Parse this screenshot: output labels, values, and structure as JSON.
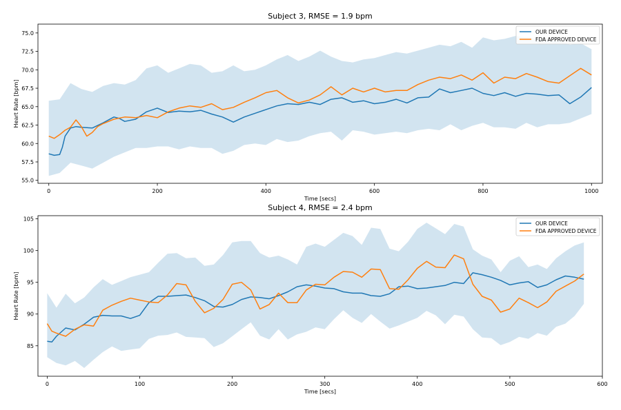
{
  "colors": {
    "device": "#1f77b4",
    "fda": "#ff7f0e",
    "band": "#1f77b4"
  },
  "chart_data": [
    {
      "type": "line",
      "title": "Subject 3, RMSE = 1.9 bpm",
      "xlabel": "Time [secs]",
      "ylabel": "Heart Rate [bpm]",
      "xlim": [
        -20,
        1020
      ],
      "ylim": [
        54.6,
        76.2
      ],
      "xticks": [
        0,
        200,
        400,
        600,
        800,
        1000
      ],
      "yticks": [
        55.0,
        57.5,
        60.0,
        62.5,
        65.0,
        67.5,
        70.0,
        72.5,
        75.0
      ],
      "ytick_labels": [
        "55.0",
        "57.5",
        "60.0",
        "62.5",
        "65.0",
        "67.5",
        "70.0",
        "72.5",
        "75.0"
      ],
      "grid": false,
      "legend_position": "top-right",
      "series": [
        {
          "name": "OUR DEVICE",
          "x": [
            0,
            10,
            20,
            25,
            30,
            40,
            50,
            60,
            80,
            100,
            120,
            130,
            140,
            160,
            180,
            200,
            220,
            240,
            260,
            280,
            300,
            320,
            340,
            360,
            380,
            400,
            420,
            440,
            460,
            480,
            500,
            520,
            540,
            560,
            580,
            600,
            620,
            640,
            660,
            680,
            700,
            720,
            740,
            760,
            780,
            800,
            820,
            840,
            860,
            880,
            900,
            920,
            940,
            960,
            980,
            1000
          ],
          "values": [
            58.6,
            58.4,
            58.5,
            59.5,
            61.0,
            62.1,
            62.3,
            62.2,
            62.1,
            62.8,
            63.6,
            63.4,
            63.0,
            63.3,
            64.3,
            64.8,
            64.2,
            64.4,
            64.3,
            64.5,
            64.0,
            63.6,
            62.9,
            63.6,
            64.1,
            64.6,
            65.1,
            65.4,
            65.3,
            65.6,
            65.3,
            66.0,
            66.2,
            65.6,
            65.8,
            65.4,
            65.6,
            66.0,
            65.5,
            66.2,
            66.3,
            67.4,
            66.9,
            67.2,
            67.5,
            66.8,
            66.5,
            66.9,
            66.4,
            66.8,
            66.7,
            66.5,
            66.6,
            65.4,
            66.3,
            67.6
          ]
        },
        {
          "name": "FDA APPROVED DEVICE",
          "x": [
            0,
            10,
            20,
            30,
            40,
            50,
            60,
            70,
            80,
            90,
            100,
            120,
            140,
            160,
            180,
            200,
            220,
            240,
            260,
            280,
            300,
            320,
            340,
            360,
            380,
            400,
            420,
            440,
            460,
            480,
            500,
            520,
            540,
            560,
            580,
            600,
            620,
            640,
            660,
            680,
            700,
            720,
            740,
            760,
            780,
            800,
            820,
            840,
            860,
            880,
            900,
            920,
            940,
            960,
            980,
            1000
          ],
          "values": [
            61.0,
            60.7,
            61.2,
            61.8,
            62.2,
            63.2,
            62.3,
            61.0,
            61.5,
            62.3,
            62.7,
            63.3,
            63.6,
            63.5,
            63.8,
            63.5,
            64.3,
            64.8,
            65.1,
            64.9,
            65.4,
            64.6,
            64.9,
            65.6,
            66.2,
            66.9,
            67.2,
            66.2,
            65.5,
            65.9,
            66.6,
            67.7,
            66.6,
            67.5,
            67.0,
            67.5,
            67.0,
            67.2,
            67.2,
            68.0,
            68.6,
            69.0,
            68.8,
            69.3,
            68.6,
            69.6,
            68.2,
            69.0,
            68.8,
            69.5,
            69.0,
            68.4,
            68.2,
            69.2,
            70.2,
            69.3
          ]
        },
        {
          "name": "",
          "kind": "band",
          "x": [
            0,
            20,
            40,
            60,
            80,
            100,
            120,
            140,
            160,
            180,
            200,
            220,
            240,
            260,
            280,
            300,
            320,
            340,
            360,
            380,
            400,
            420,
            440,
            460,
            480,
            500,
            520,
            540,
            560,
            580,
            600,
            620,
            640,
            660,
            680,
            700,
            720,
            740,
            760,
            780,
            800,
            820,
            840,
            860,
            880,
            900,
            920,
            940,
            960,
            980,
            1000
          ],
          "upper": [
            65.8,
            66.0,
            68.2,
            67.4,
            67.0,
            67.8,
            68.2,
            68.0,
            68.6,
            70.2,
            70.6,
            69.6,
            70.2,
            70.8,
            70.6,
            69.6,
            69.8,
            70.6,
            69.8,
            70.0,
            70.6,
            71.4,
            72.0,
            71.2,
            71.8,
            72.6,
            71.8,
            71.2,
            71.0,
            71.4,
            71.6,
            72.0,
            72.4,
            72.2,
            72.6,
            73.0,
            73.4,
            73.2,
            73.8,
            73.0,
            74.4,
            74.0,
            74.2,
            74.6,
            74.4,
            74.2,
            74.0,
            74.0,
            73.4,
            73.6,
            72.8
          ],
          "lower": [
            55.6,
            56.0,
            57.4,
            57.0,
            56.6,
            57.4,
            58.2,
            58.8,
            59.4,
            59.4,
            59.6,
            59.6,
            59.2,
            59.6,
            59.4,
            59.4,
            58.6,
            59.0,
            59.8,
            60.0,
            59.8,
            60.6,
            60.2,
            60.4,
            61.0,
            61.4,
            61.6,
            60.4,
            61.8,
            61.6,
            61.2,
            61.4,
            61.6,
            61.4,
            61.8,
            62.0,
            61.8,
            62.6,
            61.8,
            62.4,
            62.8,
            62.2,
            62.2,
            62.0,
            62.8,
            62.2,
            62.6,
            62.6,
            62.8,
            63.4,
            64.0
          ]
        }
      ]
    },
    {
      "type": "line",
      "title": "Subject 4, RMSE = 2.4 bpm",
      "xlabel": "Time [secs]",
      "ylabel": "Heart Rate [bpm]",
      "xlim": [
        -10,
        600
      ],
      "ylim": [
        80.2,
        105.5
      ],
      "xticks": [
        0,
        100,
        200,
        300,
        400,
        500,
        600
      ],
      "yticks": [
        85,
        90,
        95,
        100,
        105
      ],
      "ytick_labels": [
        "85",
        "90",
        "95",
        "100",
        "105"
      ],
      "grid": false,
      "legend_position": "top-right",
      "series": [
        {
          "name": "OUR DEVICE",
          "x": [
            0,
            5,
            10,
            20,
            30,
            40,
            50,
            60,
            70,
            80,
            90,
            100,
            110,
            120,
            130,
            140,
            150,
            160,
            170,
            180,
            190,
            200,
            210,
            220,
            230,
            240,
            250,
            260,
            270,
            280,
            290,
            300,
            310,
            320,
            330,
            340,
            350,
            360,
            370,
            380,
            390,
            400,
            410,
            420,
            430,
            440,
            450,
            460,
            470,
            480,
            490,
            500,
            510,
            520,
            530,
            540,
            550,
            560,
            570,
            580
          ],
          "values": [
            85.7,
            85.6,
            86.5,
            87.8,
            87.5,
            88.4,
            89.5,
            89.8,
            89.7,
            89.7,
            89.3,
            89.8,
            91.8,
            92.8,
            92.8,
            92.9,
            93.0,
            92.6,
            92.1,
            91.2,
            91.1,
            91.5,
            92.3,
            92.7,
            92.6,
            92.4,
            92.9,
            93.5,
            94.3,
            94.6,
            94.4,
            94.1,
            94.0,
            93.5,
            93.3,
            93.3,
            92.9,
            92.8,
            93.2,
            94.3,
            94.4,
            94.0,
            94.1,
            94.3,
            94.5,
            95.0,
            94.8,
            96.5,
            96.2,
            95.8,
            95.3,
            94.6,
            94.9,
            95.1,
            94.2,
            94.6,
            95.4,
            96.0,
            95.8,
            95.5
          ]
        },
        {
          "name": "FDA APPROVED DEVICE",
          "x": [
            0,
            5,
            10,
            20,
            30,
            40,
            50,
            60,
            70,
            80,
            90,
            100,
            110,
            120,
            130,
            140,
            150,
            160,
            170,
            180,
            190,
            200,
            210,
            220,
            230,
            240,
            250,
            260,
            270,
            280,
            290,
            300,
            310,
            320,
            330,
            340,
            350,
            360,
            370,
            380,
            390,
            400,
            410,
            420,
            430,
            440,
            450,
            460,
            470,
            480,
            490,
            500,
            510,
            520,
            530,
            540,
            550,
            560,
            570,
            580
          ],
          "values": [
            88.5,
            87.3,
            87.0,
            86.5,
            87.6,
            88.3,
            88.1,
            90.6,
            91.4,
            92.0,
            92.5,
            92.2,
            91.9,
            91.8,
            93.0,
            94.8,
            94.6,
            92.0,
            90.2,
            90.9,
            92.3,
            94.7,
            95.0,
            93.8,
            90.8,
            91.5,
            93.3,
            91.8,
            91.8,
            93.8,
            94.7,
            94.6,
            95.8,
            96.7,
            96.6,
            95.8,
            97.1,
            97.0,
            94.0,
            93.9,
            95.4,
            97.2,
            98.3,
            97.4,
            97.3,
            99.3,
            98.7,
            94.7,
            92.8,
            92.2,
            90.3,
            90.8,
            92.5,
            91.8,
            91.0,
            91.9,
            93.6,
            94.4,
            95.2,
            96.3
          ]
        },
        {
          "name": "",
          "kind": "band",
          "x": [
            0,
            10,
            20,
            30,
            40,
            50,
            60,
            70,
            80,
            90,
            100,
            110,
            120,
            130,
            140,
            150,
            160,
            170,
            180,
            190,
            200,
            210,
            220,
            230,
            240,
            250,
            260,
            270,
            280,
            290,
            300,
            310,
            320,
            330,
            340,
            350,
            360,
            370,
            380,
            390,
            400,
            410,
            420,
            430,
            440,
            450,
            460,
            470,
            480,
            490,
            500,
            510,
            520,
            530,
            540,
            550,
            560,
            570,
            580
          ],
          "upper": [
            93.3,
            91.0,
            93.2,
            91.7,
            92.6,
            94.2,
            95.5,
            94.6,
            95.2,
            95.8,
            96.2,
            96.6,
            98.1,
            99.5,
            99.6,
            98.8,
            98.9,
            97.6,
            97.8,
            99.3,
            101.3,
            101.5,
            101.5,
            99.6,
            98.9,
            99.2,
            98.6,
            97.8,
            100.6,
            101.1,
            100.6,
            101.7,
            102.8,
            102.3,
            100.9,
            103.6,
            103.4,
            100.3,
            99.9,
            101.4,
            103.4,
            104.4,
            103.5,
            102.6,
            104.2,
            103.8,
            100.2,
            99.2,
            98.6,
            96.6,
            98.4,
            99.1,
            97.4,
            97.8,
            97.1,
            98.8,
            99.9,
            100.8,
            101.3
          ],
          "lower": [
            83.2,
            82.3,
            81.9,
            82.6,
            81.5,
            82.8,
            84.0,
            84.9,
            84.2,
            84.4,
            84.6,
            86.1,
            86.6,
            86.7,
            87.1,
            86.4,
            86.3,
            86.2,
            84.8,
            85.4,
            86.5,
            87.6,
            88.7,
            86.6,
            86.0,
            87.6,
            86.0,
            86.8,
            87.2,
            87.9,
            87.6,
            89.2,
            90.6,
            89.4,
            88.6,
            90.0,
            88.8,
            87.7,
            88.2,
            88.8,
            89.4,
            90.5,
            89.8,
            88.4,
            89.9,
            89.6,
            87.6,
            86.3,
            86.2,
            85.1,
            85.6,
            86.4,
            86.1,
            87.0,
            86.6,
            88.0,
            88.5,
            89.7,
            91.6
          ]
        }
      ]
    }
  ]
}
